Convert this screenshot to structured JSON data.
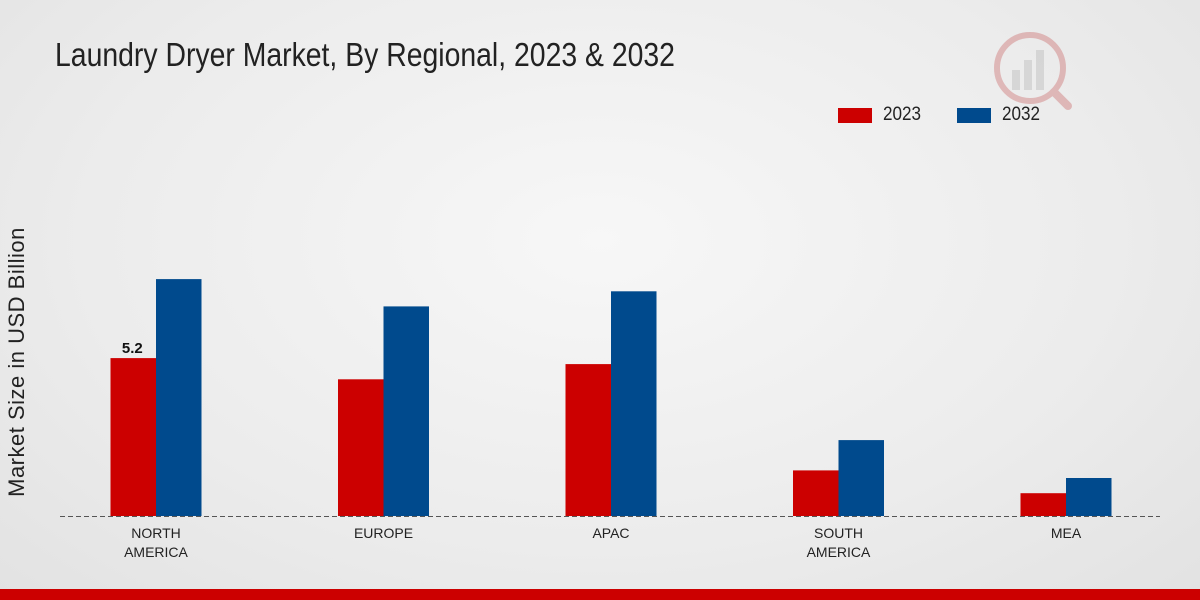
{
  "chart_data": {
    "type": "bar",
    "title": "Laundry Dryer Market, By Regional, 2023 & 2032",
    "xlabel": "",
    "ylabel": "Market Size in USD Billion",
    "categories": [
      [
        "NORTH",
        "AMERICA"
      ],
      [
        "EUROPE"
      ],
      [
        "APAC"
      ],
      [
        "SOUTH",
        "AMERICA"
      ],
      [
        "MEA"
      ]
    ],
    "series": [
      {
        "name": "2023",
        "color": "#cc0000",
        "values": [
          5.2,
          4.5,
          5.0,
          1.5,
          0.75
        ]
      },
      {
        "name": "2032",
        "color": "#004a8d",
        "values": [
          7.8,
          6.9,
          7.4,
          2.5,
          1.25
        ]
      }
    ],
    "data_labels": [
      {
        "series": 0,
        "index": 0,
        "text": "5.2"
      }
    ],
    "ylim": [
      0,
      13.5
    ],
    "grid": false,
    "legend_position": "top-right"
  }
}
